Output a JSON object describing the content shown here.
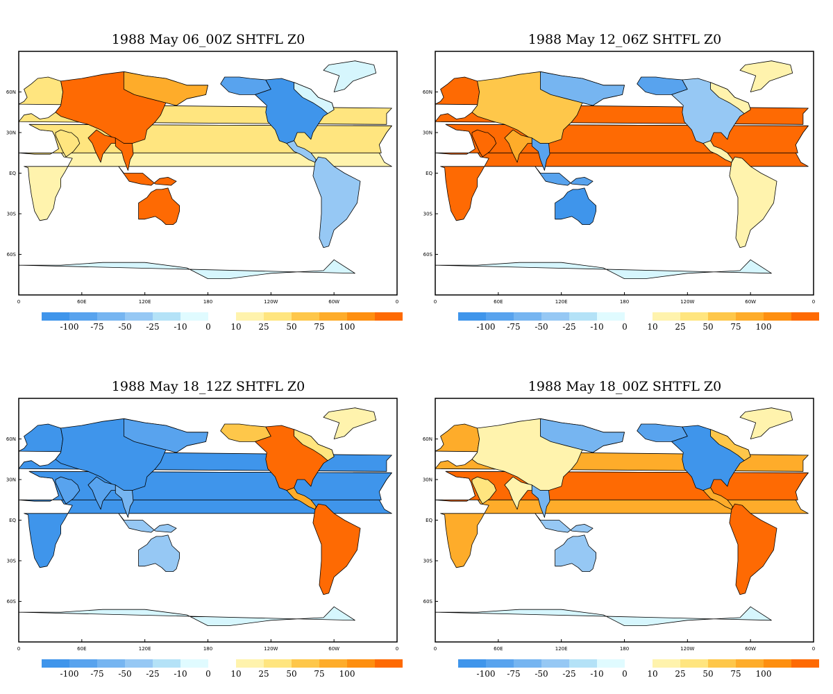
{
  "panels": [
    {
      "title": "1988 May 06_00Z SHTFL Z0",
      "pattern": [
        {
          "region": "eurasia",
          "level": "+100"
        },
        {
          "region": "europe",
          "level": "+25"
        },
        {
          "region": "siberia",
          "level": "+75"
        },
        {
          "region": "africa",
          "level": "+10"
        },
        {
          "region": "sahara",
          "level": "+25"
        },
        {
          "region": "arabia",
          "level": "+25"
        },
        {
          "region": "india",
          "level": "+100"
        },
        {
          "region": "seasia",
          "level": "+100"
        },
        {
          "region": "indonesia",
          "level": "+100"
        },
        {
          "region": "australia",
          "level": "+100"
        },
        {
          "region": "northamerica",
          "level": "-100"
        },
        {
          "region": "alaska",
          "level": "-75"
        },
        {
          "region": "canada-north",
          "level": "-10"
        },
        {
          "region": "centralamerica",
          "level": "-25"
        },
        {
          "region": "southamerica",
          "level": "-25"
        },
        {
          "region": "greenland",
          "level": "-10"
        },
        {
          "region": "antarctica",
          "level": "-10"
        }
      ]
    },
    {
      "title": "1988 May 12_06Z SHTFL Z0",
      "pattern": [
        {
          "region": "europe",
          "level": "+100"
        },
        {
          "region": "africa",
          "level": "+100"
        },
        {
          "region": "sahara",
          "level": "+100"
        },
        {
          "region": "arabia",
          "level": "+100"
        },
        {
          "region": "eurasia",
          "level": "+50"
        },
        {
          "region": "siberia",
          "level": "-50"
        },
        {
          "region": "india",
          "level": "+75"
        },
        {
          "region": "seasia",
          "level": "-75"
        },
        {
          "region": "indonesia",
          "level": "-75"
        },
        {
          "region": "australia",
          "level": "-100"
        },
        {
          "region": "alaska",
          "level": "-75"
        },
        {
          "region": "northamerica",
          "level": "-25"
        },
        {
          "region": "canada-north",
          "level": "+10"
        },
        {
          "region": "centralamerica",
          "level": "+10"
        },
        {
          "region": "southamerica",
          "level": "+10"
        },
        {
          "region": "greenland",
          "level": "+10"
        },
        {
          "region": "antarctica",
          "level": "-10"
        }
      ]
    },
    {
      "title": "1988 May 18_12Z SHTFL Z0",
      "pattern": [
        {
          "region": "europe",
          "level": "-100"
        },
        {
          "region": "africa",
          "level": "-100"
        },
        {
          "region": "sahara",
          "level": "-100"
        },
        {
          "region": "arabia",
          "level": "-75"
        },
        {
          "region": "eurasia",
          "level": "-100"
        },
        {
          "region": "siberia",
          "level": "-75"
        },
        {
          "region": "india",
          "level": "-75"
        },
        {
          "region": "seasia",
          "level": "-50"
        },
        {
          "region": "indonesia",
          "level": "-25"
        },
        {
          "region": "australia",
          "level": "-25"
        },
        {
          "region": "alaska",
          "level": "+50"
        },
        {
          "region": "northamerica",
          "level": "+100"
        },
        {
          "region": "canada-north",
          "level": "+25"
        },
        {
          "region": "centralamerica",
          "level": "+75"
        },
        {
          "region": "southamerica",
          "level": "+100"
        },
        {
          "region": "greenland",
          "level": "+10"
        },
        {
          "region": "antarctica",
          "level": "-10"
        }
      ]
    },
    {
      "title": "1988 May 18_00Z SHTFL Z0",
      "pattern": [
        {
          "region": "europe",
          "level": "+75"
        },
        {
          "region": "africa",
          "level": "+75"
        },
        {
          "region": "sahara",
          "level": "+100"
        },
        {
          "region": "arabia",
          "level": "+25"
        },
        {
          "region": "eurasia",
          "level": "+10"
        },
        {
          "region": "siberia",
          "level": "-50"
        },
        {
          "region": "india",
          "level": "+10"
        },
        {
          "region": "seasia",
          "level": "-50"
        },
        {
          "region": "indonesia",
          "level": "-25"
        },
        {
          "region": "australia",
          "level": "-25"
        },
        {
          "region": "alaska",
          "level": "-75"
        },
        {
          "region": "northamerica",
          "level": "-100"
        },
        {
          "region": "canada-north",
          "level": "+50"
        },
        {
          "region": "centralamerica",
          "level": "+75"
        },
        {
          "region": "southamerica",
          "level": "+100"
        },
        {
          "region": "greenland",
          "level": "+10"
        },
        {
          "region": "antarctica",
          "level": "-10"
        }
      ]
    }
  ],
  "y_ticks": [
    "60N",
    "30N",
    "EQ",
    "30S",
    "60S"
  ],
  "x_ticks": [
    "0",
    "60E",
    "120E",
    "180",
    "120W",
    "60W",
    "0"
  ],
  "legend": {
    "negative": {
      "colors": [
        "#3f95eb",
        "#58a3ee",
        "#76b5f1",
        "#96c8f4",
        "#b4e2f7",
        "#e0fbff"
      ],
      "labels": [
        "-100",
        "-75",
        "-50",
        "-25",
        "-10",
        "0"
      ]
    },
    "positive": {
      "colors": [
        "#fff3ad",
        "#ffe57f",
        "#fec74a",
        "#feac2a",
        "#fe8f10",
        "#fe6a03"
      ],
      "labels": [
        "10",
        "25",
        "50",
        "75",
        "100"
      ]
    }
  },
  "palette": {
    "-100": "#3f95eb",
    "-75": "#58a3ee",
    "-50": "#76b5f1",
    "-25": "#96c8f4",
    "-10": "#d6f6fd",
    "+10": "#fff3ad",
    "+25": "#ffe57f",
    "+50": "#fec74a",
    "+75": "#feac2a",
    "+100": "#fe6a03"
  }
}
